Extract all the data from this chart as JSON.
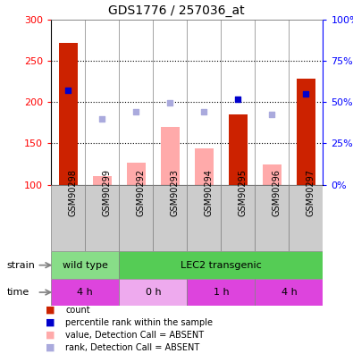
{
  "title": "GDS1776 / 257036_at",
  "samples": [
    "GSM90298",
    "GSM90299",
    "GSM90292",
    "GSM90293",
    "GSM90294",
    "GSM90295",
    "GSM90296",
    "GSM90297"
  ],
  "count_values": [
    272,
    null,
    null,
    null,
    null,
    185,
    null,
    229
  ],
  "count_absent_values": [
    null,
    110,
    127,
    170,
    144,
    null,
    124,
    null
  ],
  "percentile_present": [
    215,
    null,
    null,
    null,
    null,
    204,
    null,
    210
  ],
  "percentile_absent": [
    null,
    180,
    188,
    199,
    188,
    null,
    185,
    null
  ],
  "ylim_left": [
    100,
    300
  ],
  "ylim_right": [
    0,
    100
  ],
  "yticks_left": [
    100,
    150,
    200,
    250,
    300
  ],
  "yticks_right": [
    0,
    25,
    50,
    75,
    100
  ],
  "ytick_labels_right": [
    "0%",
    "25%",
    "50%",
    "75%",
    "100%"
  ],
  "hlines": [
    150,
    200,
    250
  ],
  "strain_groups": [
    {
      "label": "wild type",
      "start": 0,
      "end": 2,
      "color": "#88dd88"
    },
    {
      "label": "LEC2 transgenic",
      "start": 2,
      "end": 8,
      "color": "#55cc55"
    }
  ],
  "time_groups": [
    {
      "label": "4 h",
      "start": 0,
      "end": 2,
      "color": "#dd44dd"
    },
    {
      "label": "0 h",
      "start": 2,
      "end": 4,
      "color": "#eeaaee"
    },
    {
      "label": "1 h",
      "start": 4,
      "end": 6,
      "color": "#dd44dd"
    },
    {
      "label": "4 h",
      "start": 6,
      "end": 8,
      "color": "#dd44dd"
    }
  ],
  "bar_color_present": "#cc2200",
  "bar_color_absent": "#ffaaaa",
  "dot_color_present": "#0000cc",
  "dot_color_absent": "#aaaadd",
  "bar_width": 0.55,
  "background_color": "#ffffff",
  "plot_bg_color": "#ffffff",
  "xticklabel_bg": "#cccccc",
  "legend_items": [
    {
      "label": "count",
      "color": "#cc2200"
    },
    {
      "label": "percentile rank within the sample",
      "color": "#0000cc"
    },
    {
      "label": "value, Detection Call = ABSENT",
      "color": "#ffaaaa"
    },
    {
      "label": "rank, Detection Call = ABSENT",
      "color": "#aaaadd"
    }
  ]
}
